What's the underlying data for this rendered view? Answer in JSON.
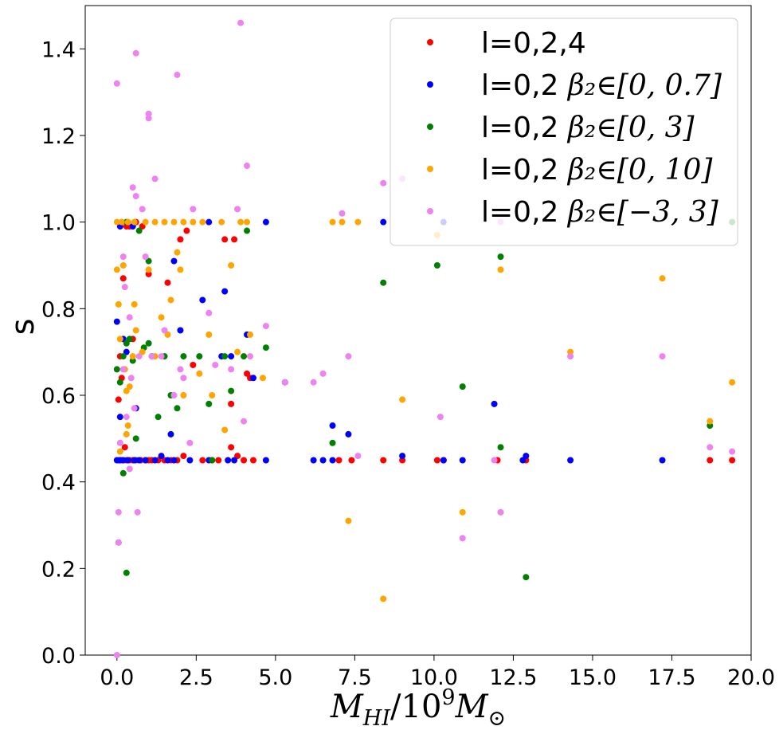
{
  "chart_data": {
    "type": "scatter",
    "xlabel": "M_HI/10^9 M_⊙",
    "ylabel": "s",
    "xlim": [
      -1.0,
      20.0
    ],
    "ylim": [
      0.0,
      1.5
    ],
    "xticks": [
      "0.0",
      "2.5",
      "5.0",
      "7.5",
      "10.0",
      "12.5",
      "15.0",
      "17.5",
      "20.0"
    ],
    "xtick_values": [
      0.0,
      2.5,
      5.0,
      7.5,
      10.0,
      12.5,
      15.0,
      17.5,
      20.0
    ],
    "yticks": [
      "0.0",
      "0.2",
      "0.4",
      "0.6",
      "0.8",
      "1.0",
      "1.2",
      "1.4"
    ],
    "ytick_values": [
      0.0,
      0.2,
      0.4,
      0.6,
      0.8,
      1.0,
      1.2,
      1.4
    ],
    "legend_position": "top-right",
    "series": [
      {
        "name": "l=0,2,4",
        "label_plain": "l=0,2,4",
        "label_math": "",
        "color": "#ff0000",
        "points": [
          [
            0.05,
            0.45
          ],
          [
            0.1,
            0.45
          ],
          [
            0.15,
            0.45
          ],
          [
            0.2,
            0.45
          ],
          [
            0.3,
            0.45
          ],
          [
            0.4,
            0.45
          ],
          [
            0.5,
            0.45
          ],
          [
            0.6,
            0.45
          ],
          [
            0.75,
            0.45
          ],
          [
            0.9,
            0.45
          ],
          [
            1.0,
            0.45
          ],
          [
            1.1,
            0.45
          ],
          [
            1.3,
            0.45
          ],
          [
            1.5,
            0.45
          ],
          [
            1.7,
            0.45
          ],
          [
            1.9,
            0.45
          ],
          [
            2.1,
            0.46
          ],
          [
            2.7,
            0.45
          ],
          [
            3.0,
            0.45
          ],
          [
            3.2,
            0.45
          ],
          [
            3.6,
            0.48
          ],
          [
            3.8,
            0.46
          ],
          [
            4.0,
            0.45
          ],
          [
            4.3,
            0.45
          ],
          [
            7.0,
            0.45
          ],
          [
            7.4,
            0.45
          ],
          [
            8.4,
            0.45
          ],
          [
            9.0,
            0.45
          ],
          [
            10.1,
            0.45
          ],
          [
            10.3,
            0.45
          ],
          [
            12.0,
            0.45
          ],
          [
            12.9,
            0.45
          ],
          [
            18.7,
            0.45
          ],
          [
            19.4,
            0.45
          ],
          [
            0.05,
            0.59
          ],
          [
            0.1,
            0.69
          ],
          [
            0.2,
            0.87
          ],
          [
            0.25,
            0.48
          ],
          [
            0.3,
            0.99
          ],
          [
            0.4,
            0.99
          ],
          [
            0.6,
            1.0
          ],
          [
            0.8,
            0.99
          ],
          [
            1.0,
            0.88
          ],
          [
            1.6,
            0.86
          ],
          [
            2.0,
            0.96
          ],
          [
            2.2,
            0.98
          ],
          [
            2.4,
            0.67
          ],
          [
            3.4,
            0.96
          ],
          [
            3.7,
            0.96
          ],
          [
            3.6,
            0.58
          ],
          [
            4.1,
            0.65
          ],
          [
            4.2,
            0.64
          ],
          [
            0.15,
            0.64
          ],
          [
            0.5,
            0.73
          ]
        ]
      },
      {
        "name": "l=0,2 β2∈[0,0.7]",
        "label_plain": "l=0,2 ",
        "label_math": "β₂∈[0, 0.7]",
        "color": "#0000ff",
        "points": [
          [
            0.0,
            0.45
          ],
          [
            0.1,
            0.45
          ],
          [
            0.2,
            0.45
          ],
          [
            0.35,
            0.45
          ],
          [
            0.55,
            0.45
          ],
          [
            0.7,
            0.45
          ],
          [
            1.2,
            0.45
          ],
          [
            1.6,
            0.45
          ],
          [
            1.8,
            0.45
          ],
          [
            2.3,
            0.45
          ],
          [
            2.9,
            0.45
          ],
          [
            3.5,
            0.45
          ],
          [
            3.7,
            0.45
          ],
          [
            4.7,
            0.45
          ],
          [
            6.2,
            0.45
          ],
          [
            6.5,
            0.45
          ],
          [
            6.8,
            0.45
          ],
          [
            10.3,
            0.45
          ],
          [
            10.9,
            0.45
          ],
          [
            12.8,
            0.45
          ],
          [
            14.3,
            0.45
          ],
          [
            17.2,
            0.45
          ],
          [
            0.0,
            0.77
          ],
          [
            0.1,
            0.99
          ],
          [
            0.2,
            0.73
          ],
          [
            0.3,
            0.7
          ],
          [
            0.5,
            0.99
          ],
          [
            0.6,
            0.57
          ],
          [
            0.9,
            0.45
          ],
          [
            1.4,
            0.46
          ],
          [
            1.8,
            0.91
          ],
          [
            2.0,
            0.75
          ],
          [
            2.7,
            0.82
          ],
          [
            2.9,
            1.0
          ],
          [
            3.3,
            0.69
          ],
          [
            3.4,
            0.84
          ],
          [
            3.6,
            0.69
          ],
          [
            4.1,
            0.74
          ],
          [
            4.3,
            0.64
          ],
          [
            4.7,
            1.0
          ],
          [
            5.3,
            0.63
          ],
          [
            6.8,
            0.53
          ],
          [
            7.3,
            0.51
          ],
          [
            8.4,
            1.0
          ],
          [
            9.0,
            0.46
          ],
          [
            10.3,
            1.0
          ],
          [
            11.9,
            0.58
          ],
          [
            12.9,
            0.46
          ],
          [
            1.7,
            0.51
          ],
          [
            0.1,
            0.55
          ]
        ]
      },
      {
        "name": "l=0,2 β2∈[0,3]",
        "label_plain": "l=0,2 ",
        "label_math": "β₂∈[0, 3]",
        "color": "#008000",
        "points": [
          [
            0.05,
            0.26
          ],
          [
            0.2,
            0.42
          ],
          [
            0.3,
            0.19
          ],
          [
            0.0,
            0.66
          ],
          [
            0.1,
            0.63
          ],
          [
            0.2,
            0.69
          ],
          [
            0.3,
            0.72
          ],
          [
            0.4,
            0.73
          ],
          [
            0.5,
            0.68
          ],
          [
            0.6,
            0.5
          ],
          [
            0.7,
            0.98
          ],
          [
            0.85,
            0.71
          ],
          [
            1.0,
            0.72
          ],
          [
            1.1,
            0.69
          ],
          [
            1.3,
            0.55
          ],
          [
            1.5,
            0.69
          ],
          [
            1.7,
            0.6
          ],
          [
            1.9,
            0.57
          ],
          [
            2.1,
            0.69
          ],
          [
            2.6,
            0.69
          ],
          [
            2.9,
            0.58
          ],
          [
            3.0,
            0.45
          ],
          [
            3.4,
            0.69
          ],
          [
            3.6,
            0.61
          ],
          [
            4.0,
            0.69
          ],
          [
            4.1,
            0.98
          ],
          [
            4.7,
            0.71
          ],
          [
            6.8,
            0.49
          ],
          [
            8.4,
            0.86
          ],
          [
            10.1,
            0.9
          ],
          [
            10.9,
            0.62
          ],
          [
            12.1,
            0.48
          ],
          [
            12.1,
            0.92
          ],
          [
            12.9,
            0.18
          ],
          [
            18.7,
            0.53
          ],
          [
            19.4,
            1.0
          ],
          [
            0.3,
            1.0
          ],
          [
            1.0,
            0.91
          ]
        ]
      },
      {
        "name": "l=0,2 β2∈[0,10]",
        "label_plain": "l=0,2 ",
        "label_math": "β₂∈[0, 10]",
        "color": "#ffa500",
        "points": [
          [
            0.0,
            1.0
          ],
          [
            0.15,
            1.0
          ],
          [
            0.35,
            1.0
          ],
          [
            0.55,
            1.0
          ],
          [
            0.9,
            1.0
          ],
          [
            1.2,
            1.0
          ],
          [
            1.5,
            1.0
          ],
          [
            1.8,
            1.0
          ],
          [
            2.1,
            1.0
          ],
          [
            2.4,
            1.0
          ],
          [
            2.7,
            1.0
          ],
          [
            3.3,
            1.0
          ],
          [
            3.9,
            1.0
          ],
          [
            4.1,
            1.0
          ],
          [
            6.8,
            1.0
          ],
          [
            7.1,
            1.0
          ],
          [
            7.6,
            1.0
          ],
          [
            10.1,
            0.97
          ],
          [
            0.0,
            0.89
          ],
          [
            0.05,
            0.81
          ],
          [
            0.1,
            0.73
          ],
          [
            0.2,
            0.9
          ],
          [
            0.25,
            0.66
          ],
          [
            0.3,
            0.61
          ],
          [
            0.35,
            0.53
          ],
          [
            0.4,
            0.62
          ],
          [
            0.5,
            0.69
          ],
          [
            0.55,
            0.81
          ],
          [
            0.6,
            0.75
          ],
          [
            0.8,
            0.7
          ],
          [
            1.0,
            0.89
          ],
          [
            1.2,
            0.69
          ],
          [
            1.4,
            0.78
          ],
          [
            1.6,
            0.74
          ],
          [
            1.7,
            0.82
          ],
          [
            1.9,
            0.93
          ],
          [
            2.0,
            0.89
          ],
          [
            2.1,
            0.6
          ],
          [
            2.6,
            0.65
          ],
          [
            2.9,
            0.74
          ],
          [
            3.0,
            0.6
          ],
          [
            3.4,
            0.52
          ],
          [
            3.6,
            0.9
          ],
          [
            3.8,
            0.7
          ],
          [
            4.2,
            0.74
          ],
          [
            4.6,
            0.64
          ],
          [
            7.3,
            0.31
          ],
          [
            8.4,
            0.13
          ],
          [
            9.0,
            0.59
          ],
          [
            10.9,
            0.33
          ],
          [
            12.1,
            0.33
          ],
          [
            12.1,
            0.89
          ],
          [
            14.3,
            0.7
          ],
          [
            17.2,
            0.87
          ],
          [
            18.7,
            0.54
          ],
          [
            19.4,
            0.63
          ],
          [
            0.1,
            0.47
          ],
          [
            0.3,
            0.51
          ]
        ]
      },
      {
        "name": "l=0,2 β2∈[-3,3]",
        "label_plain": "l=0,2 ",
        "label_math": "β₂∈[−3, 3]",
        "color": "#ee82ee",
        "points": [
          [
            0.0,
            1.32
          ],
          [
            0.6,
            1.39
          ],
          [
            1.0,
            1.25
          ],
          [
            1.0,
            1.24
          ],
          [
            1.2,
            1.1
          ],
          [
            1.9,
            1.34
          ],
          [
            3.9,
            1.46
          ],
          [
            4.1,
            1.13
          ],
          [
            0.5,
            1.08
          ],
          [
            0.8,
            1.03
          ],
          [
            0.6,
            1.06
          ],
          [
            2.4,
            1.03
          ],
          [
            3.8,
            1.03
          ],
          [
            7.1,
            1.02
          ],
          [
            8.4,
            1.09
          ],
          [
            9.0,
            1.1
          ],
          [
            12.1,
            1.0
          ],
          [
            0.0,
            0.0
          ],
          [
            0.05,
            0.26
          ],
          [
            0.05,
            0.33
          ],
          [
            0.1,
            0.49
          ],
          [
            0.2,
            0.92
          ],
          [
            0.25,
            0.85
          ],
          [
            0.3,
            0.55
          ],
          [
            0.4,
            0.78
          ],
          [
            0.45,
            0.64
          ],
          [
            0.55,
            0.57
          ],
          [
            0.65,
            0.33
          ],
          [
            0.7,
            0.69
          ],
          [
            0.9,
            0.92
          ],
          [
            1.1,
            0.69
          ],
          [
            1.4,
            0.69
          ],
          [
            1.5,
            0.75
          ],
          [
            1.8,
            0.6
          ],
          [
            2.0,
            0.66
          ],
          [
            2.1,
            0.64
          ],
          [
            2.3,
            0.49
          ],
          [
            2.9,
            0.79
          ],
          [
            3.1,
            0.67
          ],
          [
            3.6,
            0.66
          ],
          [
            4.0,
            0.54
          ],
          [
            4.2,
            0.69
          ],
          [
            4.7,
            0.76
          ],
          [
            5.3,
            0.63
          ],
          [
            6.2,
            0.63
          ],
          [
            6.5,
            0.65
          ],
          [
            7.3,
            0.69
          ],
          [
            7.6,
            0.46
          ],
          [
            10.2,
            0.55
          ],
          [
            10.9,
            0.27
          ],
          [
            11.9,
            0.45
          ],
          [
            12.1,
            0.33
          ],
          [
            14.3,
            0.69
          ],
          [
            17.2,
            0.69
          ],
          [
            18.7,
            0.48
          ],
          [
            19.4,
            0.47
          ],
          [
            0.4,
            0.43
          ],
          [
            0.2,
            0.66
          ]
        ]
      }
    ]
  }
}
